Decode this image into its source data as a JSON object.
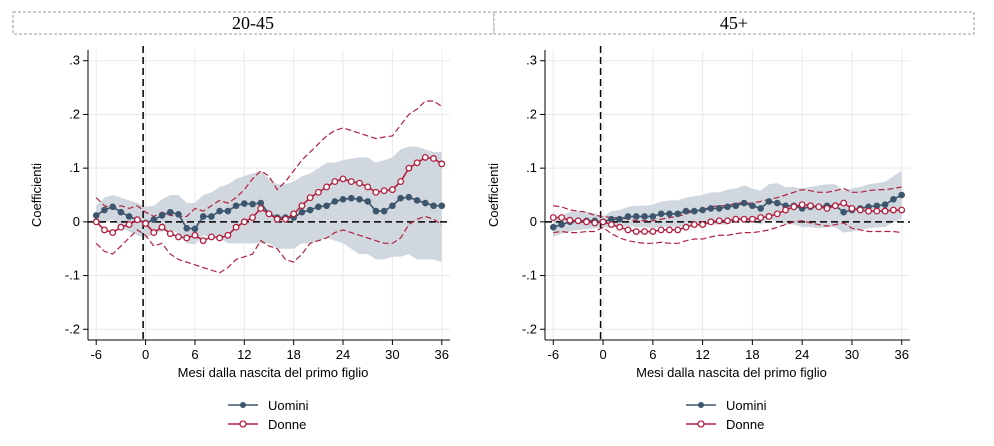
{
  "colors": {
    "men": "#3d566e",
    "women": "#b22240",
    "ci_band": "#d0d7de",
    "women_ci": "#b22240",
    "grid": "#eaeaea",
    "zero_line": "#000000",
    "header_border": "#999999"
  },
  "legend": {
    "men": "Uomini",
    "women": "Donne"
  },
  "chart_data": [
    {
      "type": "line",
      "panel_title": "20-45",
      "xlabel": "Mesi dalla nascita del primo figlio",
      "ylabel": "Coefficienti",
      "xlim": [
        -7,
        37
      ],
      "ylim": [
        -0.22,
        0.32
      ],
      "xticks": [
        -6,
        0,
        6,
        12,
        18,
        24,
        30,
        36
      ],
      "xtick_labels": [
        "-6",
        "0",
        "6",
        "12",
        "18",
        "24",
        "30",
        "36"
      ],
      "yticks": [
        -0.2,
        -0.1,
        0,
        0.1,
        0.2,
        0.3
      ],
      "ytick_labels": [
        ".2-",
        ".1-",
        "0",
        ".1",
        ".2",
        ".3"
      ],
      "event_line_x": -0.3,
      "grid": true,
      "legend_position": "bottom",
      "x": [
        -6,
        -5,
        -4,
        -3,
        -2,
        -1,
        0,
        1,
        2,
        3,
        4,
        5,
        6,
        7,
        8,
        9,
        10,
        11,
        12,
        13,
        14,
        15,
        16,
        17,
        18,
        19,
        20,
        21,
        22,
        23,
        24,
        25,
        26,
        27,
        28,
        29,
        30,
        31,
        32,
        33,
        34,
        35,
        36
      ],
      "series": [
        {
          "name": "Uomini",
          "color_key": "men",
          "values": [
            0.012,
            0.022,
            0.028,
            0.018,
            0.01,
            0.004,
            -0.002,
            0.004,
            0.012,
            0.018,
            0.014,
            -0.012,
            -0.013,
            0.01,
            0.01,
            0.02,
            0.02,
            0.03,
            0.034,
            0.033,
            0.035,
            0.015,
            0.008,
            0.008,
            0.008,
            0.018,
            0.022,
            0.028,
            0.03,
            0.038,
            0.042,
            0.044,
            0.042,
            0.038,
            0.02,
            0.02,
            0.03,
            0.044,
            0.046,
            0.04,
            0.035,
            0.03,
            0.03
          ],
          "ci_low": [
            -0.005,
            -0.002,
            0.005,
            -0.01,
            -0.018,
            -0.025,
            -0.03,
            -0.022,
            -0.018,
            -0.015,
            -0.022,
            -0.04,
            -0.042,
            -0.025,
            -0.03,
            -0.03,
            -0.04,
            -0.04,
            -0.04,
            -0.04,
            -0.04,
            -0.04,
            -0.05,
            -0.05,
            -0.05,
            -0.04,
            -0.04,
            -0.035,
            -0.03,
            -0.035,
            -0.04,
            -0.05,
            -0.06,
            -0.06,
            -0.07,
            -0.07,
            -0.065,
            -0.065,
            -0.06,
            -0.07,
            -0.07,
            -0.07,
            -0.075
          ],
          "ci_high": [
            0.03,
            0.045,
            0.05,
            0.045,
            0.04,
            0.035,
            0.028,
            0.03,
            0.042,
            0.05,
            0.05,
            0.035,
            0.035,
            0.05,
            0.055,
            0.065,
            0.07,
            0.08,
            0.085,
            0.09,
            0.095,
            0.08,
            0.07,
            0.07,
            0.075,
            0.085,
            0.09,
            0.1,
            0.11,
            0.11,
            0.115,
            0.118,
            0.12,
            0.12,
            0.11,
            0.115,
            0.12,
            0.135,
            0.14,
            0.14,
            0.135,
            0.13,
            0.13
          ]
        },
        {
          "name": "Donne",
          "color_key": "women",
          "values": [
            0,
            -0.015,
            -0.02,
            -0.01,
            -0.005,
            0.004,
            -0.003,
            -0.02,
            -0.01,
            -0.022,
            -0.028,
            -0.03,
            -0.025,
            -0.035,
            -0.028,
            -0.03,
            -0.025,
            -0.01,
            0.0,
            0.008,
            0.025,
            0.015,
            0.005,
            0.005,
            0.015,
            0.03,
            0.045,
            0.055,
            0.065,
            0.075,
            0.08,
            0.075,
            0.072,
            0.065,
            0.055,
            0.058,
            0.06,
            0.075,
            0.1,
            0.11,
            0.12,
            0.118,
            0.108
          ],
          "ci_low": [
            -0.04,
            -0.055,
            -0.06,
            -0.045,
            -0.03,
            -0.015,
            -0.025,
            -0.045,
            -0.04,
            -0.06,
            -0.07,
            -0.075,
            -0.08,
            -0.085,
            -0.09,
            -0.095,
            -0.085,
            -0.07,
            -0.065,
            -0.06,
            -0.035,
            -0.045,
            -0.05,
            -0.07,
            -0.075,
            -0.06,
            -0.04,
            -0.035,
            -0.03,
            -0.02,
            -0.015,
            -0.02,
            -0.025,
            -0.03,
            -0.035,
            -0.04,
            -0.04,
            -0.03,
            -0.005,
            0.005,
            0.01,
            0.005,
            -0.005
          ],
          "ci_high": [
            0.045,
            0.03,
            0.025,
            0.03,
            0.025,
            0.03,
            0.018,
            0.01,
            0.018,
            0.012,
            0.01,
            0.01,
            0.025,
            0.02,
            0.03,
            0.04,
            0.035,
            0.045,
            0.06,
            0.08,
            0.095,
            0.085,
            0.06,
            0.075,
            0.095,
            0.115,
            0.13,
            0.145,
            0.16,
            0.17,
            0.175,
            0.17,
            0.165,
            0.16,
            0.155,
            0.158,
            0.16,
            0.18,
            0.2,
            0.21,
            0.225,
            0.225,
            0.215
          ]
        }
      ]
    },
    {
      "type": "line",
      "panel_title": "45+",
      "xlabel": "Mesi dalla nascita del primo figlio",
      "ylabel": "Coefficienti",
      "xlim": [
        -7,
        37
      ],
      "ylim": [
        -0.22,
        0.32
      ],
      "xticks": [
        -6,
        0,
        6,
        12,
        18,
        24,
        30,
        36
      ],
      "xtick_labels": [
        "-6",
        "0",
        "6",
        "12",
        "18",
        "24",
        "30",
        "36"
      ],
      "yticks": [
        -0.2,
        -0.1,
        0,
        0.1,
        0.2,
        0.3
      ],
      "ytick_labels": [
        ".2-",
        ".1-",
        "0",
        ".1",
        ".2",
        ".3"
      ],
      "event_line_x": -0.3,
      "grid": true,
      "legend_position": "bottom",
      "x": [
        -6,
        -5,
        -4,
        -3,
        -2,
        -1,
        0,
        1,
        2,
        3,
        4,
        5,
        6,
        7,
        8,
        9,
        10,
        11,
        12,
        13,
        14,
        15,
        16,
        17,
        18,
        19,
        20,
        21,
        22,
        23,
        24,
        25,
        26,
        27,
        28,
        29,
        30,
        31,
        32,
        33,
        34,
        35,
        36
      ],
      "series": [
        {
          "name": "Uomini",
          "color_key": "men",
          "values": [
            -0.01,
            -0.005,
            0.0,
            0.002,
            0.002,
            0.002,
            0.0,
            0.005,
            0.005,
            0.01,
            0.01,
            0.01,
            0.01,
            0.015,
            0.015,
            0.015,
            0.02,
            0.02,
            0.022,
            0.025,
            0.025,
            0.028,
            0.03,
            0.035,
            0.03,
            0.025,
            0.038,
            0.035,
            0.03,
            0.03,
            0.025,
            0.028,
            0.028,
            0.03,
            0.03,
            0.018,
            0.022,
            0.025,
            0.028,
            0.03,
            0.032,
            0.042,
            0.05
          ],
          "ci_low": [
            -0.028,
            -0.022,
            -0.018,
            -0.015,
            -0.014,
            -0.012,
            -0.01,
            -0.01,
            -0.01,
            -0.008,
            -0.01,
            -0.01,
            -0.012,
            -0.008,
            -0.01,
            -0.01,
            -0.008,
            -0.008,
            -0.007,
            -0.005,
            -0.005,
            -0.005,
            0.0,
            0.002,
            0.0,
            -0.005,
            0.005,
            0.0,
            -0.005,
            -0.005,
            -0.01,
            -0.01,
            -0.012,
            -0.01,
            -0.01,
            -0.02,
            -0.018,
            -0.015,
            -0.012,
            -0.01,
            -0.01,
            0.0,
            0.005
          ],
          "ci_high": [
            0.008,
            0.012,
            0.018,
            0.02,
            0.018,
            0.016,
            0.01,
            0.02,
            0.022,
            0.028,
            0.03,
            0.03,
            0.032,
            0.038,
            0.04,
            0.04,
            0.045,
            0.048,
            0.05,
            0.055,
            0.055,
            0.06,
            0.062,
            0.068,
            0.062,
            0.058,
            0.07,
            0.072,
            0.065,
            0.065,
            0.062,
            0.065,
            0.068,
            0.07,
            0.07,
            0.058,
            0.062,
            0.065,
            0.07,
            0.072,
            0.075,
            0.085,
            0.095
          ]
        },
        {
          "name": "Donne",
          "color_key": "women",
          "values": [
            0.008,
            0.008,
            0.003,
            0.002,
            0.0,
            -0.002,
            0.0,
            -0.005,
            -0.01,
            -0.015,
            -0.018,
            -0.018,
            -0.018,
            -0.015,
            -0.015,
            -0.015,
            -0.01,
            -0.005,
            -0.005,
            0.0,
            0.002,
            0.002,
            0.005,
            0.005,
            0.005,
            0.008,
            0.01,
            0.015,
            0.022,
            0.028,
            0.032,
            0.03,
            0.028,
            0.025,
            0.03,
            0.035,
            0.025,
            0.022,
            0.02,
            0.02,
            0.02,
            0.022,
            0.022
          ],
          "ci_low": [
            -0.02,
            -0.018,
            -0.02,
            -0.02,
            -0.018,
            -0.018,
            -0.01,
            -0.022,
            -0.03,
            -0.035,
            -0.038,
            -0.04,
            -0.04,
            -0.038,
            -0.04,
            -0.04,
            -0.035,
            -0.032,
            -0.032,
            -0.028,
            -0.025,
            -0.025,
            -0.022,
            -0.02,
            -0.02,
            -0.018,
            -0.015,
            -0.01,
            -0.005,
            0.0,
            0.002,
            -0.002,
            -0.005,
            -0.008,
            -0.005,
            -0.002,
            -0.012,
            -0.015,
            -0.018,
            -0.018,
            -0.018,
            -0.018,
            -0.02
          ],
          "ci_high": [
            0.03,
            0.028,
            0.022,
            0.02,
            0.018,
            0.012,
            0.01,
            0.008,
            0.008,
            0.005,
            0.002,
            0.002,
            0.002,
            0.005,
            0.008,
            0.01,
            0.015,
            0.02,
            0.022,
            0.028,
            0.03,
            0.03,
            0.035,
            0.035,
            0.035,
            0.038,
            0.042,
            0.045,
            0.05,
            0.055,
            0.06,
            0.058,
            0.055,
            0.055,
            0.058,
            0.062,
            0.055,
            0.055,
            0.058,
            0.06,
            0.06,
            0.062,
            0.065
          ]
        }
      ]
    }
  ]
}
